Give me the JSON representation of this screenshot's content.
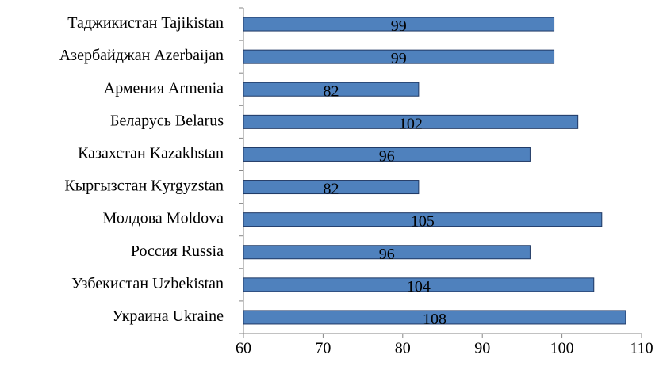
{
  "chart_data": {
    "type": "bar",
    "orientation": "horizontal",
    "categories": [
      "Таджикистан Tajikistan",
      "Азербайджан Azerbaijan",
      "Армения Armenia",
      "Беларусь Belarus",
      "Казахстан Kazakhstan",
      "Кыргызстан Kyrgyzstan",
      "Молдова Moldova",
      "Россия Russia",
      "Узбекистан Uzbekistan",
      "Украина Ukraine"
    ],
    "values": [
      99,
      99,
      82,
      102,
      96,
      82,
      105,
      96,
      104,
      108
    ],
    "color": "#4f81bd",
    "xlim": [
      60,
      110
    ],
    "xticks": [
      60,
      70,
      80,
      90,
      100,
      110
    ],
    "grid": false
  }
}
